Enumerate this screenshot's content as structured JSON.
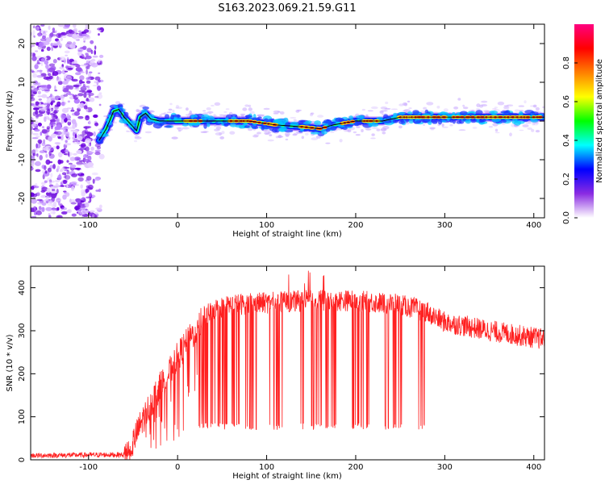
{
  "title": "S163.2023.069.21.59.G11",
  "chart_data": [
    {
      "type": "heatmap",
      "xlabel": "Height of straight line (km)",
      "ylabel": "Frequency (Hz)",
      "xlim": [
        -165,
        412
      ],
      "ylim": [
        -25,
        25
      ],
      "x_ticks": [
        -100,
        0,
        100,
        200,
        300,
        400
      ],
      "y_ticks": [
        -20,
        -10,
        0,
        10,
        20
      ],
      "colorbar": {
        "label": "Normalized spectral amplitude",
        "range": [
          0,
          1
        ],
        "ticks": [
          0.0,
          0.2,
          0.4,
          0.6,
          0.8
        ],
        "tick_labels": [
          "0.0",
          "0.2",
          "0.4",
          "0.6",
          "0.8"
        ],
        "colormap": [
          "#ffffff",
          "#8a2be2",
          "#0000ff",
          "#00ffff",
          "#00ff00",
          "#ffff00",
          "#ff8000",
          "#ff0000",
          "#ff0080"
        ]
      },
      "noise_region_x": [
        -165,
        -85
      ],
      "ridge": {
        "x": [
          -88,
          -80,
          -72,
          -66,
          -60,
          -52,
          -46,
          -42,
          -36,
          -30,
          -20,
          0,
          40,
          80,
          110,
          140,
          160,
          175,
          200,
          230,
          250,
          300,
          350,
          412
        ],
        "y": [
          -5,
          -2,
          2.5,
          3,
          1,
          -1,
          -2.5,
          1,
          2,
          0.5,
          0,
          0,
          0,
          0,
          -1,
          -1.5,
          -2,
          -1,
          0,
          0,
          1,
          1,
          1,
          1
        ]
      },
      "hot_x_ranges": [
        [
          10,
          30
        ],
        [
          60,
          110
        ],
        [
          140,
          170
        ],
        [
          185,
          200
        ],
        [
          210,
          225
        ],
        [
          250,
          300
        ],
        [
          310,
          410
        ]
      ]
    },
    {
      "type": "line",
      "xlabel": "Height of straight line (km)",
      "ylabel": "SNR (10 * v/v)",
      "xlim": [
        -165,
        412
      ],
      "ylim": [
        0,
        450
      ],
      "x_ticks": [
        -100,
        0,
        100,
        200,
        300,
        400
      ],
      "y_ticks": [
        0,
        100,
        200,
        300,
        400
      ],
      "color": "#ff2020",
      "envelope": {
        "x": [
          -165,
          -60,
          -50,
          -40,
          -30,
          -20,
          -10,
          0,
          10,
          20,
          30,
          40,
          60,
          100,
          150,
          200,
          250,
          280,
          290,
          300,
          350,
          412
        ],
        "y": [
          10,
          12,
          40,
          90,
          130,
          170,
          200,
          240,
          270,
          300,
          330,
          350,
          360,
          365,
          370,
          370,
          360,
          345,
          330,
          320,
          300,
          280
        ]
      },
      "dropout_ranges": [
        [
          20,
          90
        ],
        [
          103,
          118
        ],
        [
          138,
          178
        ],
        [
          195,
          215
        ],
        [
          232,
          252
        ],
        [
          270,
          285
        ]
      ],
      "dropout_floor": 70
    }
  ]
}
